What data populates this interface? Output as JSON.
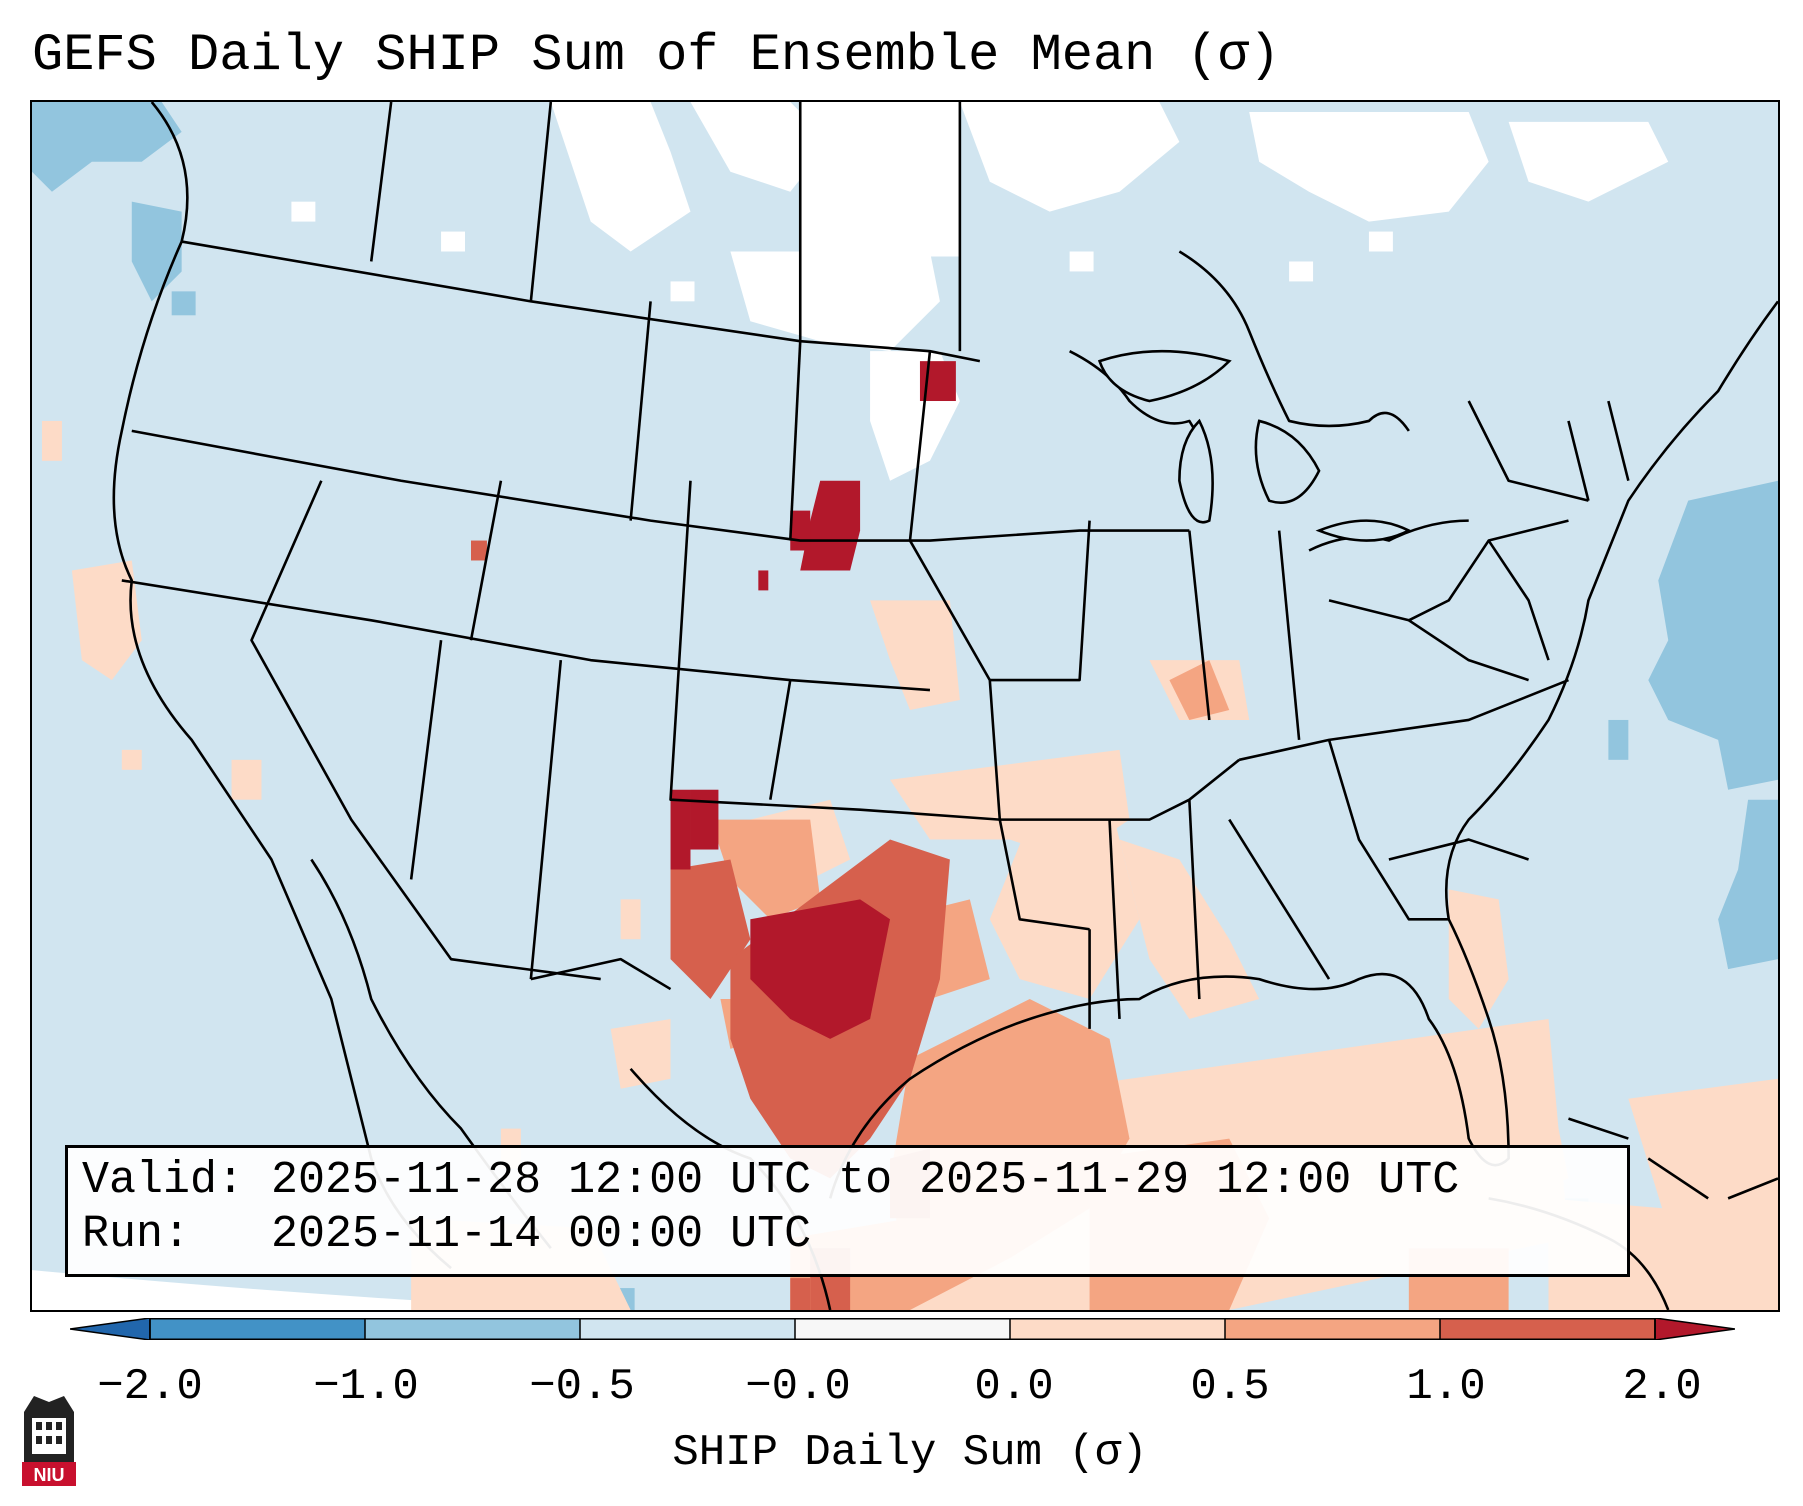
{
  "title": "GEFS Daily SHIP Sum of Ensemble Mean (σ)",
  "info": {
    "valid_line": "Valid: 2025-11-28 12:00 UTC to 2025-11-29 12:00 UTC",
    "run_line": "Run:   2025-11-14 00:00 UTC"
  },
  "colorbar": {
    "label": "SHIP Daily Sum (σ)",
    "ticks": [
      "−2.0",
      "−1.0",
      "−0.5",
      "−0.0",
      "0.0",
      "0.5",
      "1.0",
      "2.0"
    ],
    "bin_colors": [
      "#4292c6",
      "#92c5de",
      "#d1e5f0",
      "#f7f7f7",
      "#fddbc7",
      "#f4a582",
      "#d6604d"
    ],
    "extend_low_color": "#2166ac",
    "extend_high_color": "#b2182b"
  },
  "legend_colors": {
    "map_background": "#d1e5f0",
    "snow_white": "#ffffff",
    "ocean_light_blue": "#92c5de",
    "border_black": "#000000"
  },
  "logo": {
    "text": "NIU",
    "icon": "niu-building-logo"
  }
}
